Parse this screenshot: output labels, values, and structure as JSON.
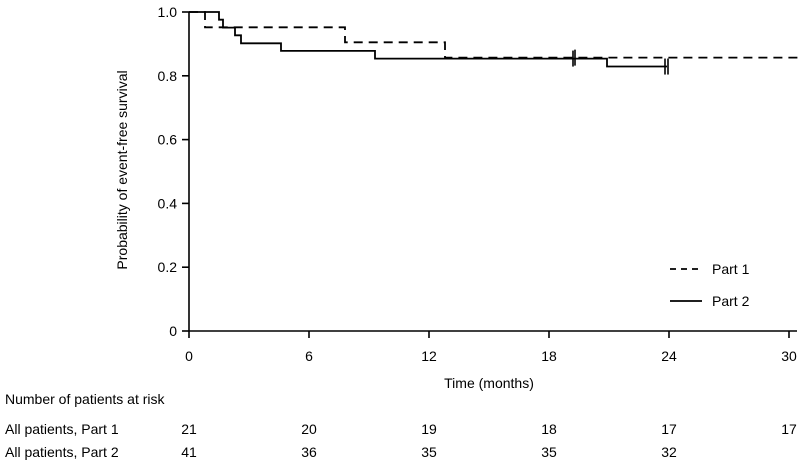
{
  "chart_data": {
    "type": "line",
    "subtype": "kaplan-meier step curve",
    "xlabel": "Time (months)",
    "ylabel": "Probability of event-free survival",
    "xlim": [
      0,
      30
    ],
    "ylim": [
      0,
      1.0
    ],
    "xticks": [
      0,
      6,
      12,
      18,
      24,
      30
    ],
    "xtick_labels": [
      "0",
      "6",
      "12",
      "18",
      "24",
      "30"
    ],
    "yticks": [
      0,
      0.2,
      0.4,
      0.6,
      0.8,
      1.0
    ],
    "ytick_labels": [
      "0",
      "0.2",
      "0.4",
      "0.6",
      "0.8",
      "1.0"
    ],
    "grid": false,
    "legend_position": "bottom-right",
    "series": [
      {
        "name": "Part 1",
        "line_style": "dashed",
        "color": "#000000",
        "points": [
          [
            0,
            1.0
          ],
          [
            0.8,
            1.0
          ],
          [
            0.8,
            0.952
          ],
          [
            7.8,
            0.952
          ],
          [
            7.8,
            0.905
          ],
          [
            12.8,
            0.905
          ],
          [
            12.8,
            0.857
          ],
          [
            30.5,
            0.857
          ]
        ],
        "censor_times": [
          19.3
        ]
      },
      {
        "name": "Part 2",
        "line_style": "solid",
        "color": "#000000",
        "points": [
          [
            0,
            1.0
          ],
          [
            1.5,
            1.0
          ],
          [
            1.5,
            0.976
          ],
          [
            1.7,
            0.976
          ],
          [
            1.7,
            0.951
          ],
          [
            2.3,
            0.951
          ],
          [
            2.3,
            0.927
          ],
          [
            2.6,
            0.927
          ],
          [
            2.6,
            0.902
          ],
          [
            4.6,
            0.902
          ],
          [
            4.6,
            0.878
          ],
          [
            9.3,
            0.878
          ],
          [
            9.3,
            0.854
          ],
          [
            20.9,
            0.854
          ],
          [
            20.9,
            0.829
          ],
          [
            23.9,
            0.829
          ]
        ],
        "censor_times": [
          19.2,
          23.8,
          23.95
        ]
      }
    ],
    "risk_table": {
      "title": "Number of patients at risk",
      "times": [
        0,
        6,
        12,
        18,
        24,
        30
      ],
      "rows": [
        {
          "label": "All patients, Part 1",
          "values": [
            "21",
            "20",
            "19",
            "18",
            "17",
            "17"
          ]
        },
        {
          "label": "All patients, Part 2",
          "values": [
            "41",
            "36",
            "35",
            "35",
            "32",
            ""
          ]
        }
      ]
    }
  }
}
